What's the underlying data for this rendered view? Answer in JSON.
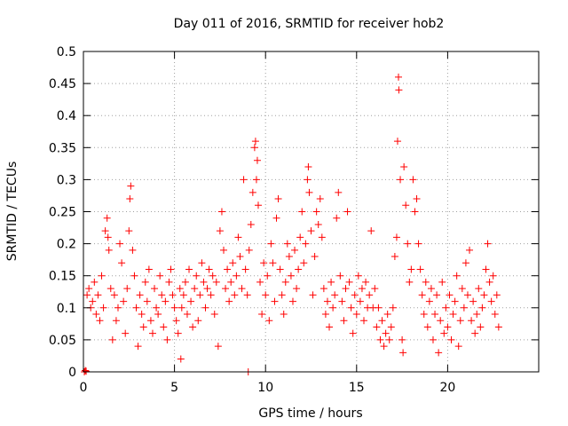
{
  "chart_data": {
    "type": "scatter",
    "title": "Day 011 of 2016, SRMTID for receiver hob2",
    "xlabel": "GPS time / hours",
    "ylabel": "SRMTID / TECUs",
    "xlim": [
      0,
      25
    ],
    "ylim": [
      0,
      0.5
    ],
    "x_ticks": [
      0,
      5,
      10,
      15,
      20
    ],
    "x_tick_labels": [
      "0",
      "5",
      "10",
      "15",
      "20"
    ],
    "y_ticks": [
      0,
      0.05,
      0.1,
      0.15,
      0.2,
      0.25,
      0.3,
      0.35,
      0.4,
      0.45,
      0.5
    ],
    "y_tick_labels": [
      "0",
      "0.05",
      "0.1",
      "0.15",
      "0.2",
      "0.25",
      "0.3",
      "0.35",
      "0.4",
      "0.45",
      "0.5"
    ],
    "grid": true,
    "marker": "+",
    "color": "#ff0000",
    "series": [
      {
        "name": "hob2",
        "points": [
          [
            0.05,
            0.0
          ],
          [
            0.1,
            0.002
          ],
          [
            0.15,
            0.001
          ],
          [
            0.2,
            0.12
          ],
          [
            0.3,
            0.13
          ],
          [
            0.4,
            0.1
          ],
          [
            0.5,
            0.11
          ],
          [
            0.6,
            0.14
          ],
          [
            0.7,
            0.09
          ],
          [
            0.8,
            0.12
          ],
          [
            0.9,
            0.08
          ],
          [
            1.0,
            0.15
          ],
          [
            1.1,
            0.1
          ],
          [
            1.2,
            0.22
          ],
          [
            1.3,
            0.24
          ],
          [
            1.35,
            0.21
          ],
          [
            1.4,
            0.19
          ],
          [
            1.5,
            0.13
          ],
          [
            1.6,
            0.05
          ],
          [
            1.7,
            0.12
          ],
          [
            1.8,
            0.08
          ],
          [
            1.9,
            0.1
          ],
          [
            2.0,
            0.2
          ],
          [
            2.1,
            0.17
          ],
          [
            2.2,
            0.11
          ],
          [
            2.3,
            0.06
          ],
          [
            2.4,
            0.13
          ],
          [
            2.5,
            0.22
          ],
          [
            2.55,
            0.27
          ],
          [
            2.6,
            0.29
          ],
          [
            2.7,
            0.19
          ],
          [
            2.8,
            0.15
          ],
          [
            2.9,
            0.1
          ],
          [
            3.0,
            0.04
          ],
          [
            3.1,
            0.12
          ],
          [
            3.2,
            0.09
          ],
          [
            3.3,
            0.07
          ],
          [
            3.4,
            0.14
          ],
          [
            3.5,
            0.11
          ],
          [
            3.6,
            0.16
          ],
          [
            3.7,
            0.08
          ],
          [
            3.8,
            0.06
          ],
          [
            3.9,
            0.13
          ],
          [
            4.0,
            0.1
          ],
          [
            4.1,
            0.09
          ],
          [
            4.2,
            0.15
          ],
          [
            4.3,
            0.12
          ],
          [
            4.4,
            0.07
          ],
          [
            4.5,
            0.11
          ],
          [
            4.6,
            0.05
          ],
          [
            4.7,
            0.14
          ],
          [
            4.8,
            0.16
          ],
          [
            4.9,
            0.12
          ],
          [
            5.0,
            0.1
          ],
          [
            5.1,
            0.08
          ],
          [
            5.2,
            0.06
          ],
          [
            5.3,
            0.13
          ],
          [
            5.35,
            0.02
          ],
          [
            5.4,
            0.1
          ],
          [
            5.5,
            0.12
          ],
          [
            5.6,
            0.14
          ],
          [
            5.7,
            0.09
          ],
          [
            5.8,
            0.16
          ],
          [
            5.9,
            0.11
          ],
          [
            6.0,
            0.07
          ],
          [
            6.1,
            0.13
          ],
          [
            6.2,
            0.15
          ],
          [
            6.3,
            0.08
          ],
          [
            6.4,
            0.12
          ],
          [
            6.5,
            0.17
          ],
          [
            6.6,
            0.14
          ],
          [
            6.7,
            0.1
          ],
          [
            6.8,
            0.13
          ],
          [
            6.9,
            0.16
          ],
          [
            7.0,
            0.12
          ],
          [
            7.1,
            0.15
          ],
          [
            7.2,
            0.09
          ],
          [
            7.3,
            0.14
          ],
          [
            7.4,
            0.04
          ],
          [
            7.5,
            0.22
          ],
          [
            7.6,
            0.25
          ],
          [
            7.7,
            0.19
          ],
          [
            7.8,
            0.13
          ],
          [
            7.9,
            0.16
          ],
          [
            8.0,
            0.11
          ],
          [
            8.1,
            0.14
          ],
          [
            8.2,
            0.17
          ],
          [
            8.3,
            0.12
          ],
          [
            8.4,
            0.15
          ],
          [
            8.5,
            0.21
          ],
          [
            8.6,
            0.18
          ],
          [
            8.7,
            0.13
          ],
          [
            8.8,
            0.3
          ],
          [
            8.9,
            0.16
          ],
          [
            9.0,
            0.12
          ],
          [
            9.05,
            0.0
          ],
          [
            9.1,
            0.19
          ],
          [
            9.2,
            0.23
          ],
          [
            9.3,
            0.28
          ],
          [
            9.4,
            0.35
          ],
          [
            9.45,
            0.36
          ],
          [
            9.5,
            0.3
          ],
          [
            9.55,
            0.33
          ],
          [
            9.6,
            0.26
          ],
          [
            9.7,
            0.14
          ],
          [
            9.8,
            0.09
          ],
          [
            9.9,
            0.17
          ],
          [
            10.0,
            0.12
          ],
          [
            10.1,
            0.15
          ],
          [
            10.2,
            0.08
          ],
          [
            10.3,
            0.2
          ],
          [
            10.4,
            0.17
          ],
          [
            10.5,
            0.11
          ],
          [
            10.6,
            0.24
          ],
          [
            10.7,
            0.27
          ],
          [
            10.8,
            0.16
          ],
          [
            10.9,
            0.12
          ],
          [
            11.0,
            0.09
          ],
          [
            11.1,
            0.14
          ],
          [
            11.2,
            0.2
          ],
          [
            11.3,
            0.18
          ],
          [
            11.4,
            0.15
          ],
          [
            11.5,
            0.11
          ],
          [
            11.6,
            0.19
          ],
          [
            11.7,
            0.13
          ],
          [
            11.8,
            0.16
          ],
          [
            11.9,
            0.21
          ],
          [
            12.0,
            0.25
          ],
          [
            12.1,
            0.17
          ],
          [
            12.2,
            0.2
          ],
          [
            12.3,
            0.3
          ],
          [
            12.35,
            0.32
          ],
          [
            12.4,
            0.28
          ],
          [
            12.5,
            0.22
          ],
          [
            12.6,
            0.12
          ],
          [
            12.7,
            0.18
          ],
          [
            12.8,
            0.25
          ],
          [
            12.9,
            0.23
          ],
          [
            13.0,
            0.27
          ],
          [
            13.1,
            0.21
          ],
          [
            13.2,
            0.13
          ],
          [
            13.3,
            0.09
          ],
          [
            13.4,
            0.11
          ],
          [
            13.5,
            0.07
          ],
          [
            13.6,
            0.14
          ],
          [
            13.7,
            0.1
          ],
          [
            13.8,
            0.12
          ],
          [
            13.9,
            0.24
          ],
          [
            14.0,
            0.28
          ],
          [
            14.1,
            0.15
          ],
          [
            14.2,
            0.11
          ],
          [
            14.3,
            0.08
          ],
          [
            14.4,
            0.13
          ],
          [
            14.5,
            0.25
          ],
          [
            14.6,
            0.14
          ],
          [
            14.7,
            0.1
          ],
          [
            14.8,
            0.06
          ],
          [
            14.9,
            0.12
          ],
          [
            15.0,
            0.09
          ],
          [
            15.1,
            0.15
          ],
          [
            15.2,
            0.11
          ],
          [
            15.3,
            0.13
          ],
          [
            15.4,
            0.08
          ],
          [
            15.5,
            0.14
          ],
          [
            15.6,
            0.1
          ],
          [
            15.7,
            0.12
          ],
          [
            15.8,
            0.22
          ],
          [
            15.9,
            0.1
          ],
          [
            16.0,
            0.13
          ],
          [
            16.1,
            0.07
          ],
          [
            16.2,
            0.1
          ],
          [
            16.3,
            0.05
          ],
          [
            16.4,
            0.08
          ],
          [
            16.5,
            0.04
          ],
          [
            16.6,
            0.06
          ],
          [
            16.7,
            0.09
          ],
          [
            16.8,
            0.05
          ],
          [
            16.9,
            0.07
          ],
          [
            17.0,
            0.1
          ],
          [
            17.1,
            0.18
          ],
          [
            17.2,
            0.21
          ],
          [
            17.25,
            0.36
          ],
          [
            17.3,
            0.46
          ],
          [
            17.32,
            0.44
          ],
          [
            17.4,
            0.3
          ],
          [
            17.5,
            0.05
          ],
          [
            17.55,
            0.03
          ],
          [
            17.6,
            0.32
          ],
          [
            17.7,
            0.26
          ],
          [
            17.8,
            0.2
          ],
          [
            17.9,
            0.14
          ],
          [
            18.0,
            0.16
          ],
          [
            18.1,
            0.3
          ],
          [
            18.2,
            0.25
          ],
          [
            18.3,
            0.27
          ],
          [
            18.4,
            0.2
          ],
          [
            18.5,
            0.16
          ],
          [
            18.6,
            0.12
          ],
          [
            18.7,
            0.09
          ],
          [
            18.8,
            0.14
          ],
          [
            18.9,
            0.07
          ],
          [
            19.0,
            0.11
          ],
          [
            19.1,
            0.13
          ],
          [
            19.2,
            0.05
          ],
          [
            19.3,
            0.09
          ],
          [
            19.4,
            0.12
          ],
          [
            19.5,
            0.03
          ],
          [
            19.6,
            0.08
          ],
          [
            19.7,
            0.14
          ],
          [
            19.8,
            0.06
          ],
          [
            19.9,
            0.1
          ],
          [
            20.0,
            0.07
          ],
          [
            20.1,
            0.12
          ],
          [
            20.2,
            0.05
          ],
          [
            20.3,
            0.09
          ],
          [
            20.4,
            0.11
          ],
          [
            20.5,
            0.15
          ],
          [
            20.6,
            0.04
          ],
          [
            20.7,
            0.08
          ],
          [
            20.8,
            0.13
          ],
          [
            20.9,
            0.1
          ],
          [
            21.0,
            0.17
          ],
          [
            21.1,
            0.12
          ],
          [
            21.2,
            0.19
          ],
          [
            21.3,
            0.08
          ],
          [
            21.4,
            0.11
          ],
          [
            21.5,
            0.06
          ],
          [
            21.6,
            0.09
          ],
          [
            21.7,
            0.13
          ],
          [
            21.8,
            0.07
          ],
          [
            21.9,
            0.1
          ],
          [
            22.0,
            0.12
          ],
          [
            22.1,
            0.16
          ],
          [
            22.2,
            0.2
          ],
          [
            22.3,
            0.14
          ],
          [
            22.4,
            0.11
          ],
          [
            22.5,
            0.15
          ],
          [
            22.6,
            0.09
          ],
          [
            22.7,
            0.12
          ],
          [
            22.8,
            0.07
          ]
        ]
      }
    ]
  }
}
